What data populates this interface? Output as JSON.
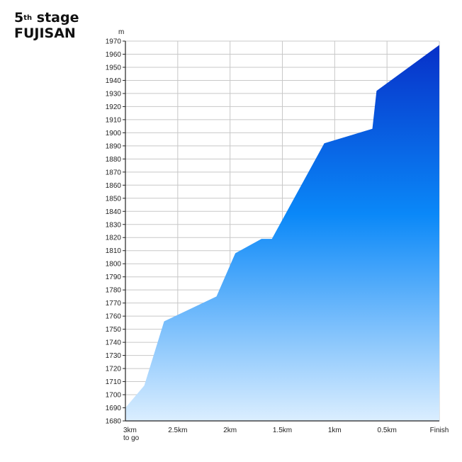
{
  "title": {
    "number": "5",
    "superscript": "th",
    "stage": "stage",
    "name": "FUJISAN"
  },
  "chart_data": {
    "type": "area",
    "title": "5th stage FUJISAN",
    "ylabel": "m",
    "xlabel": "",
    "ylim": [
      1680,
      1970
    ],
    "xlim": [
      0,
      3
    ],
    "x_direction": "distance covered (km), 0 = 3km to go, 3 = Finish",
    "x_ticks": [
      {
        "x": 0,
        "label": "3km",
        "sublabel": "to go"
      },
      {
        "x": 0.5,
        "label": "2.5km"
      },
      {
        "x": 1.0,
        "label": "2km"
      },
      {
        "x": 1.5,
        "label": "1.5km"
      },
      {
        "x": 2.0,
        "label": "1km"
      },
      {
        "x": 2.5,
        "label": "0.5km"
      },
      {
        "x": 3.0,
        "label": "Finish"
      }
    ],
    "y_ticks": [
      1680,
      1690,
      1700,
      1710,
      1720,
      1730,
      1740,
      1750,
      1760,
      1770,
      1780,
      1790,
      1800,
      1810,
      1820,
      1830,
      1840,
      1850,
      1860,
      1870,
      1880,
      1890,
      1900,
      1910,
      1920,
      1930,
      1940,
      1950,
      1960,
      1970
    ],
    "grid": true,
    "points": [
      {
        "x": 0.0,
        "y": 1690
      },
      {
        "x": 0.18,
        "y": 1707
      },
      {
        "x": 0.37,
        "y": 1756
      },
      {
        "x": 0.87,
        "y": 1775
      },
      {
        "x": 1.05,
        "y": 1808
      },
      {
        "x": 1.3,
        "y": 1819
      },
      {
        "x": 1.4,
        "y": 1819
      },
      {
        "x": 1.9,
        "y": 1892
      },
      {
        "x": 2.36,
        "y": 1903
      },
      {
        "x": 2.4,
        "y": 1932
      },
      {
        "x": 3.0,
        "y": 1967
      }
    ],
    "colors": {
      "fill_top": "#0730c8",
      "fill_mid": "#0a88f8",
      "fill_bottom": "#dbeeff",
      "grid": "#c8c8c8",
      "axis": "#222222"
    }
  }
}
